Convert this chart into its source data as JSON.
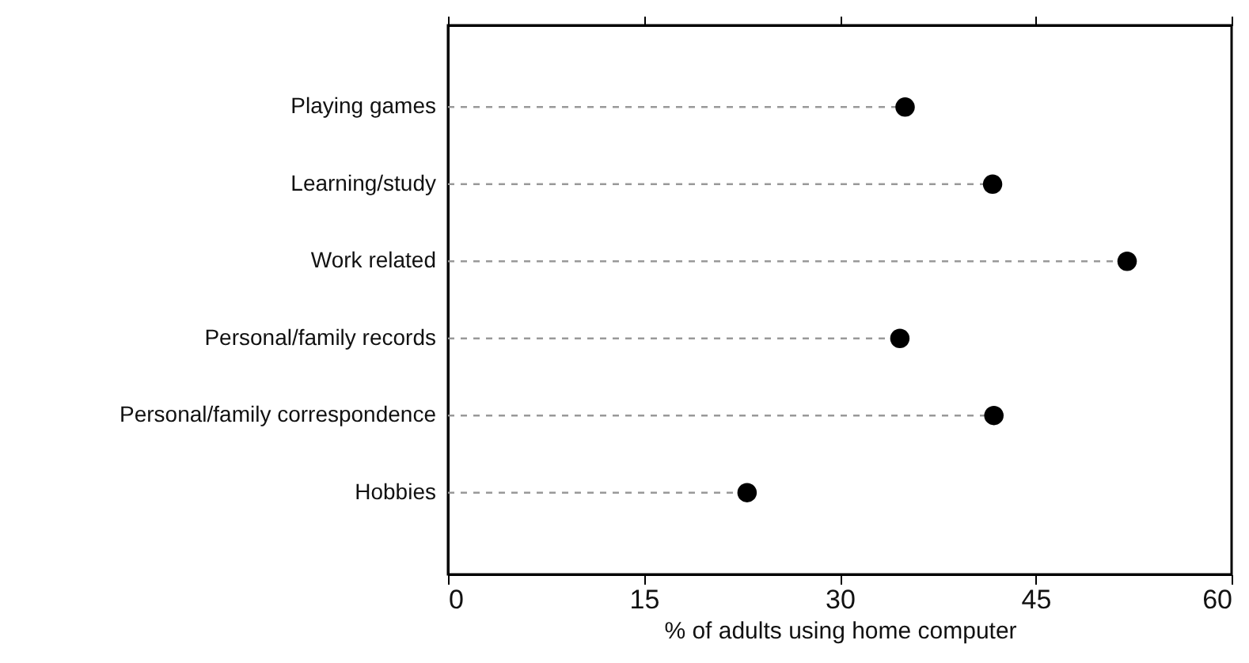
{
  "chart_data": {
    "type": "lollipop",
    "orientation": "horizontal",
    "xlabel": "% of adults using home computer",
    "categories": [
      "Playing games",
      "Learning/study",
      "Work related",
      "Personal/family records",
      "Personal/family correspondence",
      "Hobbies"
    ],
    "series": [
      {
        "color": "#000000",
        "values": [
          35.0,
          41.7,
          52.0,
          34.6,
          41.8,
          22.9
        ]
      }
    ],
    "xlim": [
      0,
      60
    ],
    "xticks": [
      0,
      15,
      30,
      45,
      60
    ],
    "marker": "circle",
    "line_style": "dashed"
  }
}
